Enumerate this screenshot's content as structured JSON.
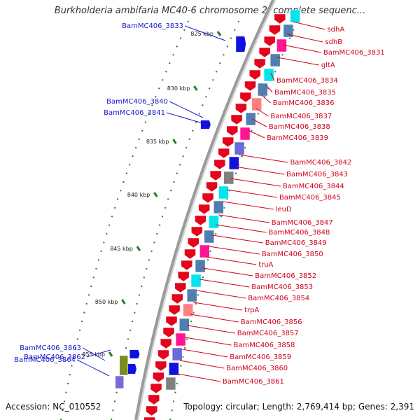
{
  "title": "Burkholderia ambifaria MC40-6 chromosome 2, complete sequenc...",
  "accession": "Accession: NC_010552",
  "topology": "Topology: circular; Length: 2,769,414 bp; Genes: 2,391",
  "colors": {
    "forward": "#e4041c",
    "reverse": "#1010e0",
    "forward_label": "#d0021b",
    "reverse_label": "#1a1acc",
    "kbp_tick": "#2a7a2a",
    "backbone": "#8a8a8a"
  },
  "kbp_marks": [
    "825 kbp",
    "830 kbp",
    "835 kbp",
    "840 kbp",
    "845 kbp",
    "850 kbp",
    "855 kbp"
  ],
  "reverse_genes": [
    "BamMC406_3833",
    "BamMC406_3840",
    "BamMC406_3841",
    "BamMC406_3862",
    "BamMC406_3863",
    "BamMC406_3864"
  ],
  "forward_genes": [
    "sdhA",
    "sdhB",
    "BamMC406_3831",
    "gltA",
    "BamMC406_3834",
    "BamMC406_3835",
    "BamMC406_3836",
    "BamMC406_3837",
    "BamMC406_3838",
    "BamMC406_3839",
    "BamMC406_3842",
    "BamMC406_3843",
    "BamMC406_3844",
    "BamMC406_3845",
    "leuD",
    "BamMC406_3847",
    "BamMC406_3848",
    "BamMC406_3849",
    "BamMC406_3850",
    "truA",
    "BamMC406_3852",
    "BamMC406_3853",
    "BamMC406_3854",
    "trpA",
    "BamMC406_3856",
    "BamMC406_3857",
    "BamMC406_3858",
    "BamMC406_3859",
    "BamMC406_3860",
    "BamMC406_3861"
  ]
}
